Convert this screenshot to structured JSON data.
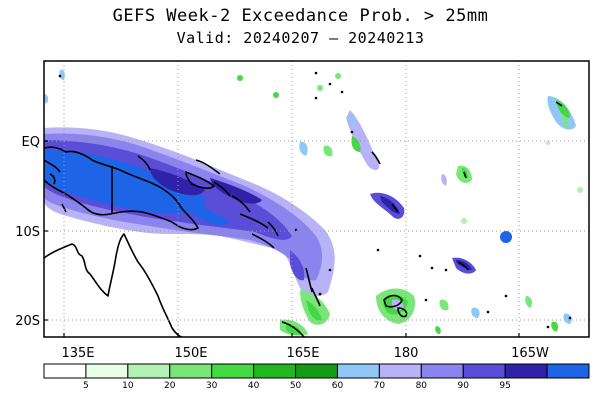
{
  "title": "GEFS Week-2 Exceedance Prob. > 25mm",
  "subtitle": "Valid: 20240207 – 20240213",
  "map": {
    "lon_labels": [
      "135E",
      "150E",
      "165E",
      "180",
      "165W"
    ],
    "lat_labels": [
      "EQ",
      "10S",
      "20S"
    ],
    "grid": "dotted"
  },
  "colorbar": {
    "tick_labels": [
      "5",
      "10",
      "20",
      "30",
      "40",
      "50",
      "60",
      "70",
      "80",
      "90",
      "95"
    ],
    "colors": [
      "#ffffff",
      "#e6ffe6",
      "#b3f0b3",
      "#7ae67a",
      "#44d844",
      "#22b722",
      "#159b15",
      "#8fc8f7",
      "#b8b2f7",
      "#8c84ee",
      "#5a4ed8",
      "#2f22a8",
      "#1e64e6"
    ]
  }
}
